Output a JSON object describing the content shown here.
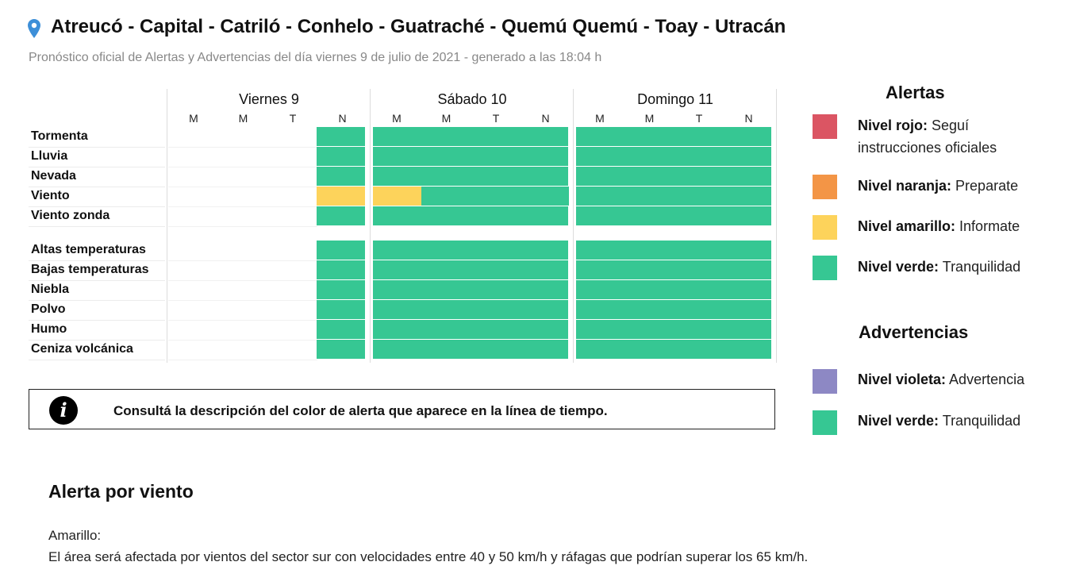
{
  "header": {
    "title": "Atreucó - Capital - Catriló - Conhelo - Guatraché - Quemú Quemú - Toay - Utracán",
    "subtitle": "Pronóstico oficial de Alertas y Advertencias del día viernes 9 de julio de 2021 - generado a las 18:04 h",
    "pin_icon": "map-pin-icon"
  },
  "timeline": {
    "days": [
      {
        "label": "Viernes 9",
        "shifts": [
          "M",
          "M",
          "T",
          "N"
        ]
      },
      {
        "label": "Sábado 10",
        "shifts": [
          "M",
          "M",
          "T",
          "N"
        ]
      },
      {
        "label": "Domingo 11",
        "shifts": [
          "M",
          "M",
          "T",
          "N"
        ]
      }
    ],
    "rows": [
      {
        "label": "Tormenta",
        "levels": [
          "none",
          "none",
          "none",
          "verde",
          "verde",
          "verde",
          "verde",
          "verde",
          "verde",
          "verde",
          "verde",
          "verde"
        ]
      },
      {
        "label": "Lluvia",
        "levels": [
          "none",
          "none",
          "none",
          "verde",
          "verde",
          "verde",
          "verde",
          "verde",
          "verde",
          "verde",
          "verde",
          "verde"
        ]
      },
      {
        "label": "Nevada",
        "levels": [
          "none",
          "none",
          "none",
          "verde",
          "verde",
          "verde",
          "verde",
          "verde",
          "verde",
          "verde",
          "verde",
          "verde"
        ]
      },
      {
        "label": "Viento",
        "levels": [
          "none",
          "none",
          "none",
          "amarillo",
          "amarillo",
          "verde",
          "verde",
          "verde",
          "verde",
          "verde",
          "verde",
          "verde"
        ]
      },
      {
        "label": "Viento zonda",
        "levels": [
          "none",
          "none",
          "none",
          "verde",
          "verde",
          "verde",
          "verde",
          "verde",
          "verde",
          "verde",
          "verde",
          "verde"
        ]
      },
      {
        "label": "Altas temperaturas",
        "levels": [
          "none",
          "none",
          "none",
          "verde",
          "verde",
          "verde",
          "verde",
          "verde",
          "verde",
          "verde",
          "verde",
          "verde"
        ]
      },
      {
        "label": "Bajas temperaturas",
        "levels": [
          "none",
          "none",
          "none",
          "verde",
          "verde",
          "verde",
          "verde",
          "verde",
          "verde",
          "verde",
          "verde",
          "verde"
        ]
      },
      {
        "label": "Niebla",
        "levels": [
          "none",
          "none",
          "none",
          "verde",
          "verde",
          "verde",
          "verde",
          "verde",
          "verde",
          "verde",
          "verde",
          "verde"
        ]
      },
      {
        "label": "Polvo",
        "levels": [
          "none",
          "none",
          "none",
          "verde",
          "verde",
          "verde",
          "verde",
          "verde",
          "verde",
          "verde",
          "verde",
          "verde"
        ]
      },
      {
        "label": "Humo",
        "levels": [
          "none",
          "none",
          "none",
          "verde",
          "verde",
          "verde",
          "verde",
          "verde",
          "verde",
          "verde",
          "verde",
          "verde"
        ]
      },
      {
        "label": "Ceniza volcánica",
        "levels": [
          "none",
          "none",
          "none",
          "verde",
          "verde",
          "verde",
          "verde",
          "verde",
          "verde",
          "verde",
          "verde",
          "verde"
        ]
      }
    ]
  },
  "colors": {
    "verde": "#36c793",
    "amarillo": "#fdd35b",
    "naranja": "#f39546",
    "rojo": "#db5563",
    "violeta": "#8d88c4",
    "none": "transparent"
  },
  "info": {
    "icon": "info-icon",
    "text": "Consultá la descripción del color de alerta que aparece en la línea de tiempo."
  },
  "legend": {
    "alertas_title": "Alertas",
    "alertas": [
      {
        "level": "rojo",
        "name": "Nivel rojo:",
        "desc": "Seguí instrucciones oficiales"
      },
      {
        "level": "naranja",
        "name": "Nivel naranja:",
        "desc": "Preparate"
      },
      {
        "level": "amarillo",
        "name": "Nivel amarillo:",
        "desc": "Informate"
      },
      {
        "level": "verde",
        "name": "Nivel verde:",
        "desc": "Tranquilidad"
      }
    ],
    "advertencias_title": "Advertencias",
    "advertencias": [
      {
        "level": "violeta",
        "name": "Nivel violeta:",
        "desc": "Advertencia"
      },
      {
        "level": "verde",
        "name": "Nivel verde:",
        "desc": "Tranquilidad"
      }
    ]
  },
  "detail": {
    "title": "Alerta por viento",
    "level_label": "Amarillo:",
    "description": "El área será afectada por vientos del sector sur con velocidades entre 40 y 50 km/h y ráfagas que podrían superar los 65 km/h."
  }
}
